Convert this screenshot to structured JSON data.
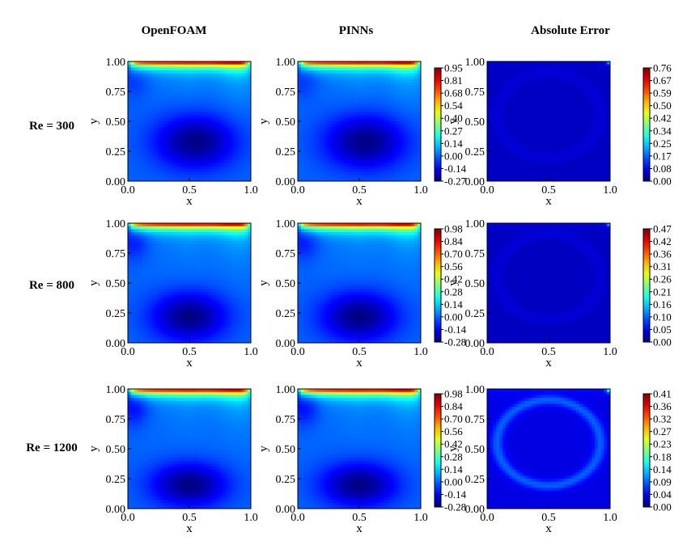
{
  "figure": {
    "columns": [
      "OpenFOAM",
      "PINNs",
      "Absolute Error"
    ],
    "rows": [
      "Re = 300",
      "Re = 800",
      "Re = 1200"
    ]
  },
  "chart_data": {
    "type": "heatmap",
    "description_axes": {
      "xlabel": "x",
      "ylabel": "y",
      "xlim": [
        0.0,
        1.0
      ],
      "ylim": [
        0.0,
        1.0
      ],
      "xticks": [
        "0.0",
        "0.5",
        "1.0"
      ],
      "yticks": [
        "0.00",
        "0.25",
        "0.50",
        "0.75",
        "1.00"
      ]
    },
    "colormap": "jet",
    "panels": [
      {
        "row": 0,
        "column": 0,
        "kind": "field",
        "field": {
          "top_peak": 0.95,
          "core_min": -0.27,
          "core_x": 0.55,
          "core_y": 0.33,
          "core_rx": 0.32,
          "core_ry": 0.22,
          "side_min": -0.06
        }
      },
      {
        "row": 0,
        "column": 1,
        "kind": "field",
        "field": {
          "top_peak": 0.95,
          "core_min": -0.27,
          "core_x": 0.55,
          "core_y": 0.33,
          "core_rx": 0.32,
          "core_ry": 0.22,
          "side_min": -0.06
        }
      },
      {
        "row": 0,
        "column": 2,
        "kind": "error",
        "field": {
          "base": 0.05,
          "ring_amp": 0.015,
          "corner_peak": 0.2
        }
      },
      {
        "row": 1,
        "column": 0,
        "kind": "field",
        "field": {
          "top_peak": 0.98,
          "core_min": -0.28,
          "core_x": 0.5,
          "core_y": 0.22,
          "core_rx": 0.3,
          "core_ry": 0.2,
          "side_min": -0.1
        }
      },
      {
        "row": 1,
        "column": 1,
        "kind": "field",
        "field": {
          "top_peak": 0.98,
          "core_min": -0.28,
          "core_x": 0.5,
          "core_y": 0.22,
          "core_rx": 0.3,
          "core_ry": 0.2,
          "side_min": -0.1
        }
      },
      {
        "row": 1,
        "column": 2,
        "kind": "error",
        "field": {
          "base": 0.03,
          "ring_amp": 0.01,
          "corner_peak": 0.12
        }
      },
      {
        "row": 2,
        "column": 0,
        "kind": "field",
        "field": {
          "top_peak": 0.98,
          "core_min": -0.28,
          "core_x": 0.5,
          "core_y": 0.2,
          "core_rx": 0.3,
          "core_ry": 0.18,
          "side_min": -0.12
        }
      },
      {
        "row": 2,
        "column": 1,
        "kind": "field",
        "field": {
          "top_peak": 0.98,
          "core_min": -0.28,
          "core_x": 0.5,
          "core_y": 0.2,
          "core_rx": 0.3,
          "core_ry": 0.18,
          "side_min": -0.12
        }
      },
      {
        "row": 2,
        "column": 2,
        "kind": "error",
        "field": {
          "base": 0.04,
          "ring_amp": 0.05,
          "corner_peak": 0.15
        }
      }
    ],
    "colorbars": [
      {
        "row": 0,
        "for": "PINNs",
        "vmin": -0.27,
        "vmax": 0.95,
        "ticks": [
          "0.95",
          "0.81",
          "0.68",
          "0.54",
          "0.40",
          "0.27",
          "0.14",
          "0.00",
          "-0.14",
          "-0.27"
        ]
      },
      {
        "row": 0,
        "for": "Absolute Error",
        "vmin": 0.0,
        "vmax": 0.76,
        "ticks": [
          "0.76",
          "0.67",
          "0.59",
          "0.50",
          "0.42",
          "0.34",
          "0.25",
          "0.17",
          "0.08",
          "0.00"
        ]
      },
      {
        "row": 1,
        "for": "PINNs",
        "vmin": -0.28,
        "vmax": 0.98,
        "ticks": [
          "0.98",
          "0.84",
          "0.70",
          "0.56",
          "0.42",
          "0.28",
          "0.14",
          "0.00",
          "-0.14",
          "-0.28"
        ]
      },
      {
        "row": 1,
        "for": "Absolute Error",
        "vmin": 0.0,
        "vmax": 0.47,
        "ticks": [
          "0.47",
          "0.42",
          "0.36",
          "0.31",
          "0.26",
          "0.21",
          "0.16",
          "0.10",
          "0.05",
          "0.00"
        ]
      },
      {
        "row": 2,
        "for": "PINNs",
        "vmin": -0.28,
        "vmax": 0.98,
        "ticks": [
          "0.98",
          "0.84",
          "0.70",
          "0.56",
          "0.42",
          "0.28",
          "0.14",
          "0.00",
          "-0.14",
          "-0.28"
        ]
      },
      {
        "row": 2,
        "for": "Absolute Error",
        "vmin": 0.0,
        "vmax": 0.41,
        "ticks": [
          "0.41",
          "0.36",
          "0.32",
          "0.27",
          "0.23",
          "0.18",
          "0.14",
          "0.09",
          "0.04",
          "0.00"
        ]
      }
    ]
  }
}
